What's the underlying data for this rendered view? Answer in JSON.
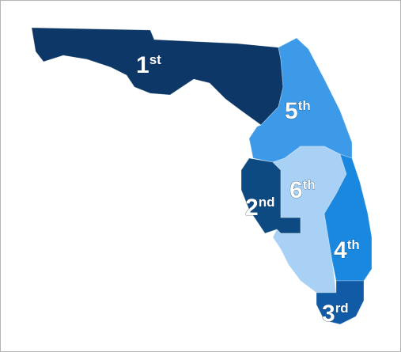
{
  "map": {
    "districts": [
      {
        "number": "1",
        "suffix": "st"
      },
      {
        "number": "2",
        "suffix": "nd"
      },
      {
        "number": "3",
        "suffix": "rd"
      },
      {
        "number": "4",
        "suffix": "th"
      },
      {
        "number": "5",
        "suffix": "th"
      },
      {
        "number": "6",
        "suffix": "th"
      }
    ]
  }
}
